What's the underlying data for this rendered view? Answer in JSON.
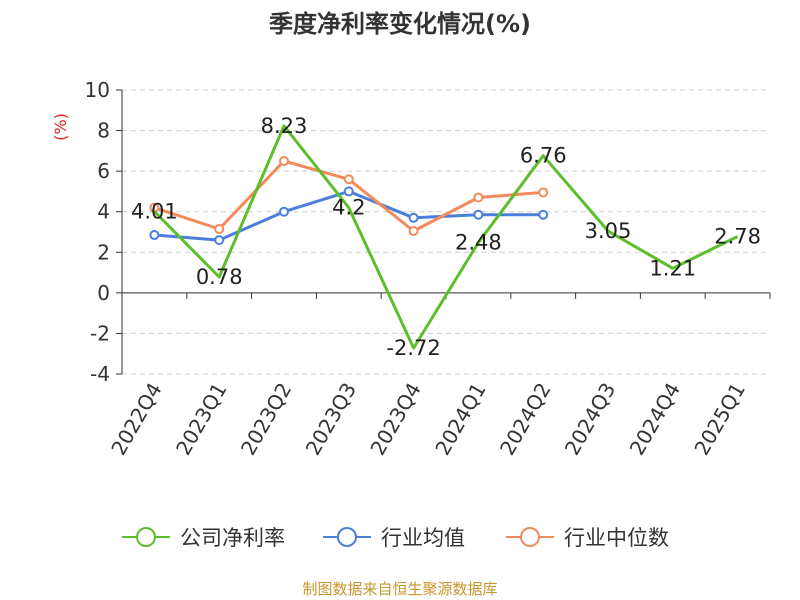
{
  "source_note": "制图数据来自恒生聚源数据库",
  "colors": {
    "source": "#c8962a",
    "unit": "#e02020",
    "grid": "#cccccc",
    "axis": "#333333"
  },
  "chart_data": {
    "type": "line",
    "title": "季度净利率变化情况(%)",
    "ylabel": "(%)",
    "xlabel": "",
    "categories": [
      "2022Q4",
      "2023Q1",
      "2023Q2",
      "2023Q3",
      "2023Q4",
      "2024Q1",
      "2024Q2",
      "2024Q3",
      "2024Q4",
      "2025Q1"
    ],
    "ylim": [
      -4,
      10
    ],
    "yticks": [
      -4,
      -2,
      0,
      2,
      4,
      6,
      8,
      10
    ],
    "grid": true,
    "legend_position": "bottom",
    "series": [
      {
        "name": "公司净利率",
        "color": "#5cbf2a",
        "values": [
          4.01,
          0.78,
          8.23,
          4.2,
          -2.72,
          2.48,
          6.76,
          3.05,
          1.21,
          2.78
        ],
        "labels": [
          "4.01",
          "0.78",
          "8.23",
          "4.2",
          "-2.72",
          "2.48",
          "6.76",
          "3.05",
          "1.21",
          "2.78"
        ]
      },
      {
        "name": "行业均值",
        "color": "#4a7fdc",
        "values": [
          2.85,
          2.6,
          4.0,
          5.0,
          3.7,
          3.85,
          3.85,
          null,
          null,
          null
        ]
      },
      {
        "name": "行业中位数",
        "color": "#f28a5c",
        "values": [
          4.2,
          3.15,
          6.5,
          5.6,
          3.05,
          4.7,
          4.95,
          null,
          null,
          null
        ]
      }
    ]
  }
}
